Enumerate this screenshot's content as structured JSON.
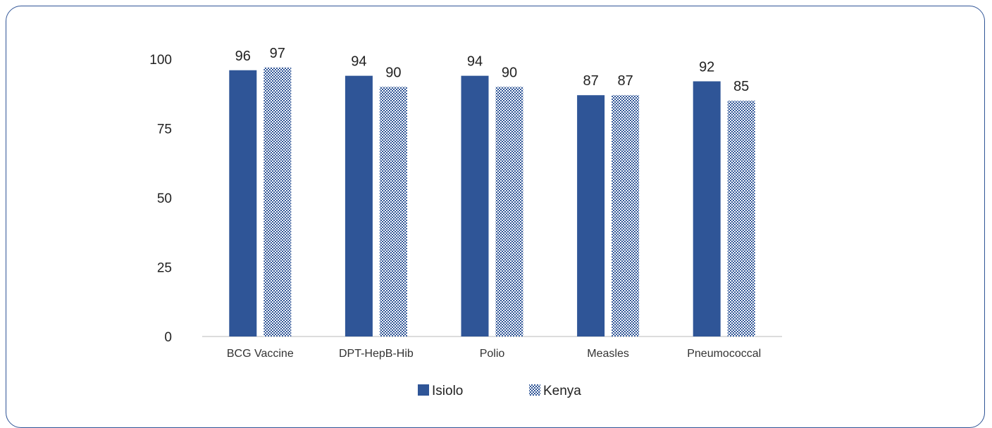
{
  "chart_data": {
    "type": "bar",
    "categories": [
      "BCG Vaccine",
      "DPT-HepB-Hib",
      "Polio",
      "Measles",
      "Pneumococcal"
    ],
    "series": [
      {
        "name": "Isiolo",
        "values": [
          96,
          94,
          94,
          87,
          92
        ],
        "color": "#2f5597",
        "pattern": "solid"
      },
      {
        "name": "Kenya",
        "values": [
          97,
          90,
          90,
          87,
          85
        ],
        "color": "#2f5597",
        "pattern": "checker"
      }
    ],
    "data_labels": [
      [
        "96",
        "94",
        "94",
        "87",
        "92"
      ],
      [
        "97",
        "90",
        "90",
        "87",
        "85"
      ]
    ],
    "yticks": [
      "0",
      "25",
      "50",
      "75",
      "100"
    ],
    "ylim": [
      0,
      100
    ],
    "grid": false,
    "legend_position": "bottom"
  }
}
